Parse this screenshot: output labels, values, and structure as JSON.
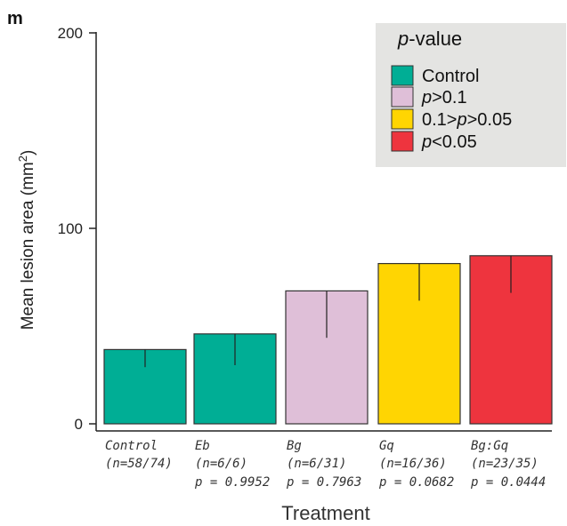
{
  "panel_label": "m",
  "chart_data": {
    "type": "bar",
    "ylabel_main": "Mean lesion area (mm",
    "ylabel_sup": "2",
    "ylabel_close": ")",
    "xlabel": "Treatment",
    "ylim": [
      0,
      200
    ],
    "yticks": [
      0,
      100,
      200
    ],
    "categories": [
      {
        "name": "Control",
        "n": "(n=58/74)",
        "p": "",
        "value": 38,
        "err_low": 29,
        "group": 0
      },
      {
        "name": "Eb",
        "n": "(n=6/6)",
        "p": "p = 0.9952",
        "value": 46,
        "err_low": 30,
        "group": 0
      },
      {
        "name": "Bg",
        "n": "(n=6/31)",
        "p": "p = 0.7963",
        "value": 68,
        "err_low": 44,
        "group": 1
      },
      {
        "name": "Gq",
        "n": "(n=16/36)",
        "p": "p = 0.0682",
        "value": 82,
        "err_low": 63,
        "group": 2
      },
      {
        "name": "Bg:Gq",
        "n": "(n=23/35)",
        "p": "p = 0.0444",
        "value": 86,
        "err_low": 67,
        "group": 3
      }
    ],
    "legend": {
      "title": "-value",
      "title_italic": "p",
      "placement": "top-right",
      "entries": [
        {
          "label": "Control",
          "color": "#00ae95"
        },
        {
          "label": "p>0.1",
          "color": "#dfbfd8"
        },
        {
          "label": "0.1>p>0.05",
          "color": "#ffd502"
        },
        {
          "label": "p<0.05",
          "color": "#ee343e"
        }
      ]
    },
    "colors": [
      "#00ae95",
      "#dfbfd8",
      "#ffd502",
      "#ee343e"
    ]
  }
}
